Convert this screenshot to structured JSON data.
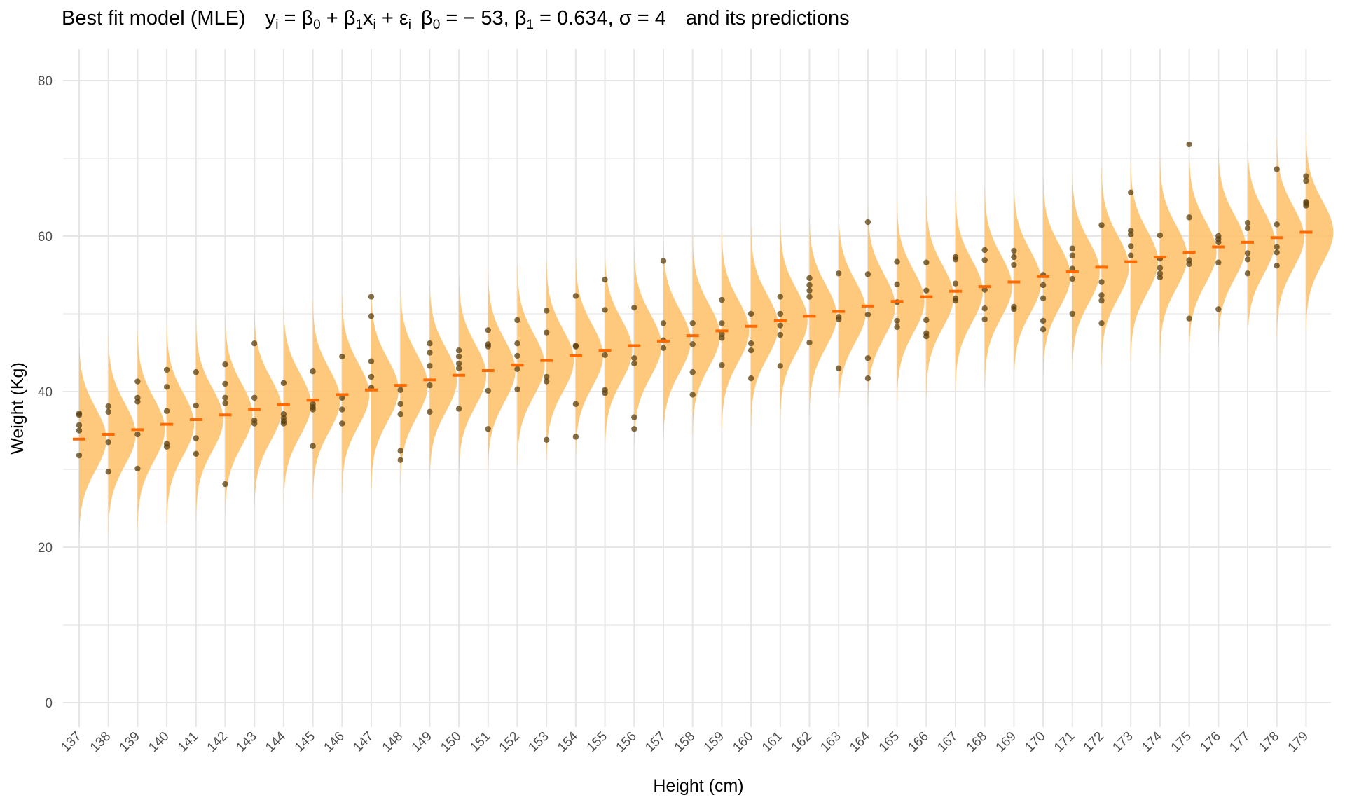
{
  "title": {
    "prefix": "Best fit model (MLE)",
    "b0_value": "− 53,",
    "b1_value": "0.634,",
    "sigma_value": "4",
    "suffix": "and its predictions"
  },
  "colors": {
    "density_fill": "#ffbf66",
    "prediction": "#ff6a00",
    "points": "#5a3e0e",
    "grid": "#e6e6e6"
  },
  "chart_data": {
    "type": "scatter",
    "title": "Best fit model (MLE)   yᵢ = β₀ + β₁xᵢ + εᵢ  β₀ = − 53, β₁ = 0.634, σ = 4   and its predictions",
    "xlabel": "Height (cm)",
    "ylabel": "Weight (Kg)",
    "ylim": [
      -3,
      83
    ],
    "y_ticks": [
      0,
      20,
      40,
      60,
      80
    ],
    "grid": true,
    "legend": "none",
    "model": {
      "beta0": -53,
      "beta1": 0.634,
      "sigma": 4
    },
    "categories": [
      137,
      138,
      139,
      140,
      141,
      142,
      143,
      144,
      145,
      146,
      147,
      148,
      149,
      150,
      151,
      152,
      153,
      154,
      155,
      156,
      157,
      158,
      159,
      160,
      161,
      162,
      163,
      164,
      165,
      166,
      167,
      168,
      169,
      170,
      171,
      172,
      173,
      174,
      175,
      176,
      177,
      178,
      179
    ],
    "predictions": [
      33.9,
      34.5,
      35.1,
      35.8,
      36.4,
      37.0,
      37.7,
      38.3,
      38.9,
      39.6,
      40.2,
      40.8,
      41.5,
      42.1,
      42.7,
      43.4,
      44.0,
      44.6,
      45.3,
      45.9,
      46.5,
      47.2,
      47.8,
      48.4,
      49.1,
      49.7,
      50.3,
      51.0,
      51.6,
      52.2,
      52.9,
      53.5,
      54.1,
      54.8,
      55.4,
      56.0,
      56.7,
      57.3,
      57.9,
      58.6,
      59.2,
      59.8,
      60.5
    ],
    "observations": [
      [
        37.2,
        37.0,
        35.7,
        35.0,
        31.8
      ],
      [
        38.1,
        37.4,
        33.5,
        29.7
      ],
      [
        41.3,
        39.2,
        38.7,
        34.5,
        30.1
      ],
      [
        42.8,
        40.6,
        37.5,
        33.3,
        32.9
      ],
      [
        42.5,
        38.2,
        34.0,
        32.0
      ],
      [
        43.5,
        41.0,
        39.2,
        38.5,
        28.1
      ],
      [
        46.2,
        39.2,
        36.3,
        35.9
      ],
      [
        41.1,
        37.1,
        36.6,
        36.2,
        35.9
      ],
      [
        42.6,
        38.4,
        38.0,
        37.7,
        33.0
      ],
      [
        44.5,
        39.2,
        37.7,
        35.9
      ],
      [
        52.2,
        49.7,
        43.9,
        41.9,
        40.5
      ],
      [
        40.2,
        38.4,
        37.1,
        32.4,
        31.2
      ],
      [
        46.2,
        45.0,
        43.3,
        40.8,
        37.4
      ],
      [
        45.3,
        44.5,
        43.6,
        43.0,
        37.8
      ],
      [
        47.9,
        46.1,
        45.8,
        40.1,
        35.2
      ],
      [
        49.2,
        46.2,
        44.6,
        42.9,
        40.3
      ],
      [
        50.4,
        47.6,
        41.9,
        41.3,
        33.8
      ],
      [
        52.3,
        45.9,
        45.8,
        38.4,
        34.2
      ],
      [
        54.4,
        50.5,
        44.7,
        40.2,
        39.8
      ],
      [
        50.8,
        44.3,
        43.6,
        36.7,
        35.2
      ],
      [
        56.8,
        48.8,
        46.6,
        45.6
      ],
      [
        48.8,
        46.1,
        42.5,
        39.6
      ],
      [
        51.8,
        48.8,
        47.4,
        46.9,
        43.4
      ],
      [
        50.0,
        46.2,
        45.3,
        41.7
      ],
      [
        52.2,
        50.0,
        48.5,
        47.3,
        43.3
      ],
      [
        54.6,
        53.7,
        53.0,
        52.2,
        46.3
      ],
      [
        55.2,
        49.6,
        49.3,
        43.0
      ],
      [
        61.8,
        55.1,
        49.9,
        44.3,
        41.7
      ],
      [
        56.7,
        53.8,
        51.5,
        49.1,
        48.3
      ],
      [
        56.6,
        53.0,
        49.2,
        47.5,
        47.1
      ],
      [
        57.3,
        57.0,
        53.9,
        52.0,
        51.7
      ],
      [
        58.2,
        56.9,
        53.1,
        50.7,
        49.3
      ],
      [
        58.1,
        57.3,
        56.3,
        50.9,
        50.6
      ],
      [
        55.0,
        53.7,
        52.0,
        49.1,
        48.0
      ],
      [
        58.4,
        57.5,
        55.8,
        54.5,
        50.0
      ],
      [
        61.4,
        54.1,
        52.4,
        51.7,
        48.8
      ],
      [
        65.6,
        60.7,
        60.2,
        58.7,
        57.5
      ],
      [
        60.1,
        57.1,
        55.9,
        55.2,
        54.7
      ],
      [
        71.8,
        62.4,
        56.9,
        56.4,
        49.4
      ],
      [
        60.0,
        59.6,
        59.2,
        56.6,
        50.6
      ],
      [
        61.7,
        61.0,
        57.8,
        57.0,
        55.2
      ],
      [
        68.6,
        61.5,
        58.6,
        57.9,
        56.2
      ],
      [
        67.7,
        67.1,
        64.4,
        64.2,
        63.9
      ]
    ]
  }
}
